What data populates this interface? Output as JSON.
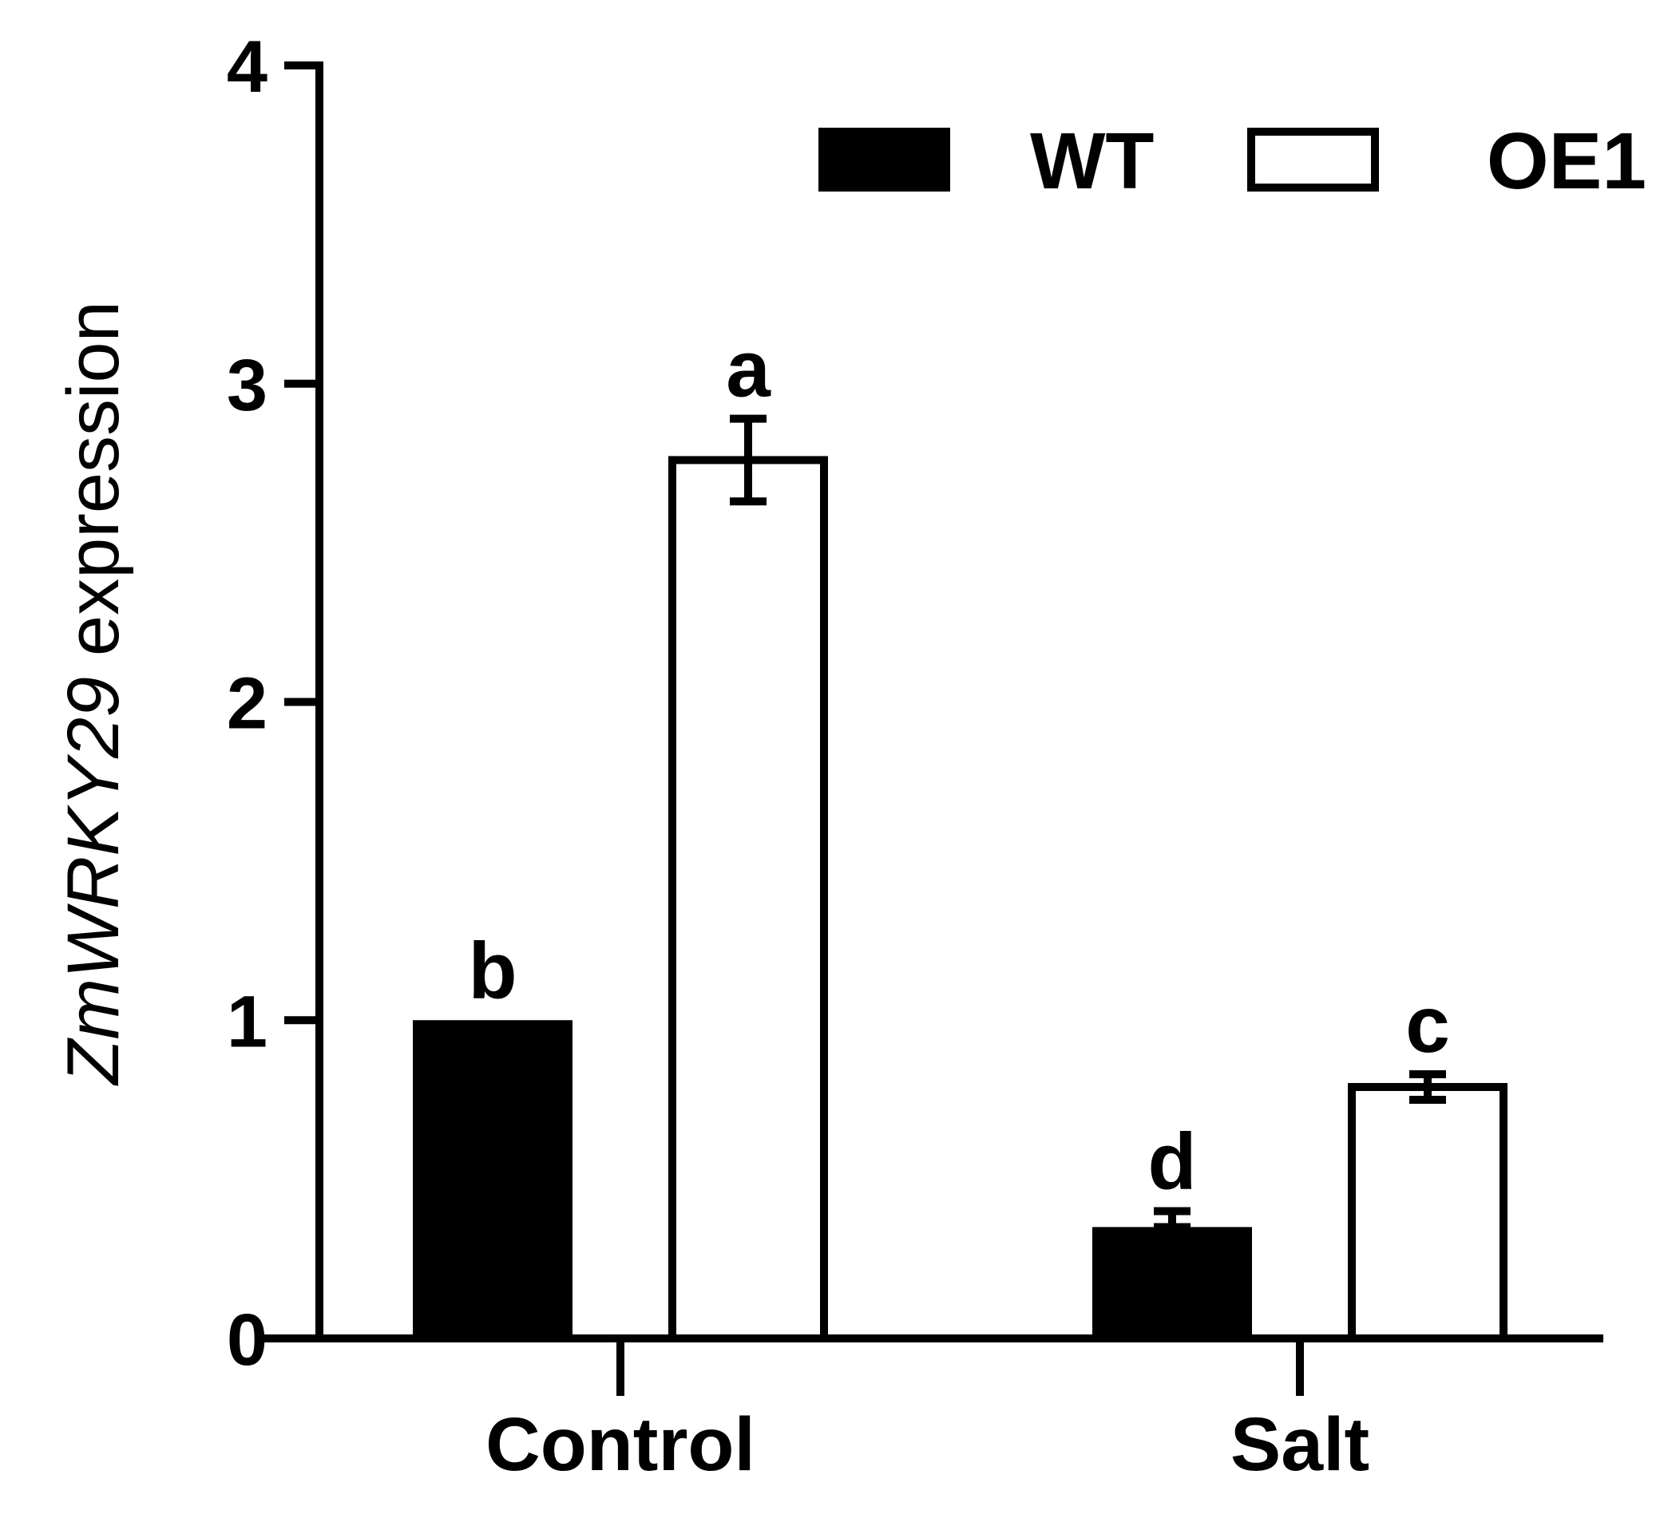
{
  "chart_data": {
    "type": "bar",
    "ylabel_italic": "ZmWRKY29",
    "ylabel_plain": " expression",
    "categories": [
      "Control",
      "Salt"
    ],
    "ylim": [
      0,
      4
    ],
    "yticks": [
      0,
      1,
      2,
      3,
      4
    ],
    "grid": false,
    "legend_position": "top-right",
    "series": [
      {
        "name": "WT",
        "fill": "#000000",
        "values": [
          1.0,
          0.35
        ],
        "errors": [
          0,
          0.05
        ],
        "letters": [
          "b",
          "d"
        ]
      },
      {
        "name": "OE1",
        "fill": "#ffffff",
        "values": [
          2.76,
          0.79
        ],
        "errors": [
          0.13,
          0.04
        ],
        "letters": [
          "a",
          "c"
        ]
      }
    ]
  }
}
